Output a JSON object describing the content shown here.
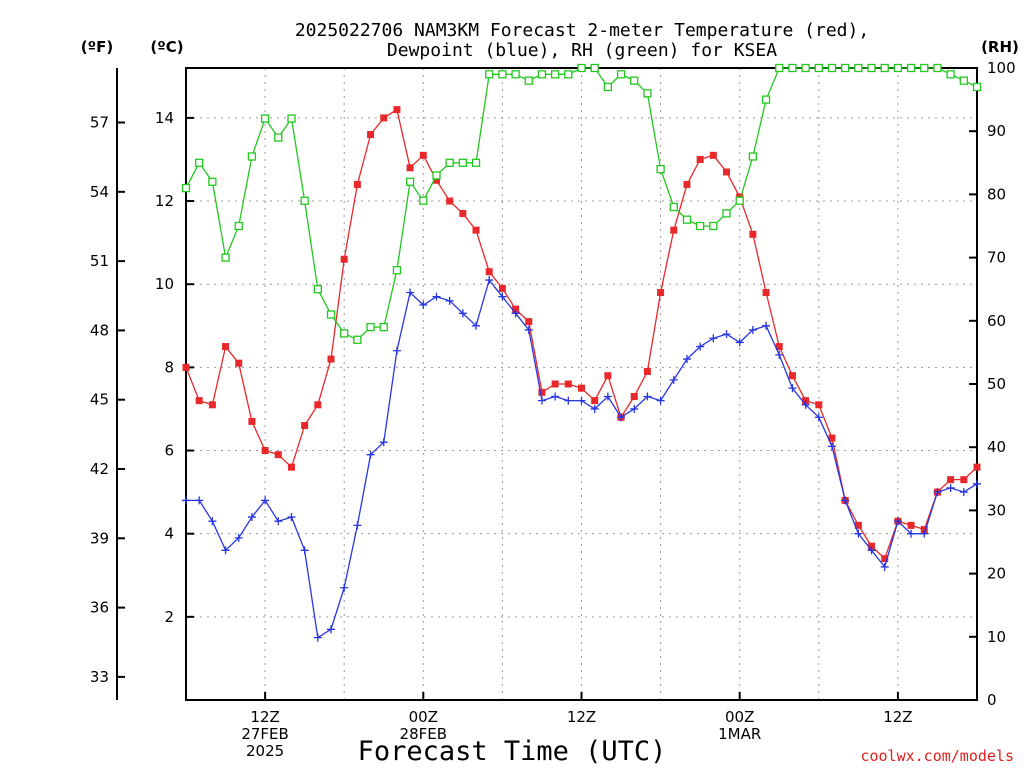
{
  "chart_data": {
    "type": "line",
    "title_line1": "2025022706 NAM3KM Forecast 2-meter Temperature (red),",
    "title_line2": "Dewpoint (blue), RH (green) for KSEA",
    "xlabel": "Forecast Time (UTC)",
    "watermark": "coolwx.com/models",
    "units": {
      "fahrenheit": "(ºF)",
      "celsius": "(ºC)",
      "rh": "(RH)"
    },
    "grid": true,
    "x_range_hours": [
      0,
      60
    ],
    "x_ticks": [
      {
        "hour": 6,
        "lines": [
          "12Z",
          "27FEB",
          "2025"
        ]
      },
      {
        "hour": 18,
        "lines": [
          "00Z",
          "28FEB"
        ]
      },
      {
        "hour": 30,
        "lines": [
          "12Z"
        ]
      },
      {
        "hour": 42,
        "lines": [
          "00Z",
          "1MAR"
        ]
      },
      {
        "hour": 54,
        "lines": [
          "12Z"
        ]
      }
    ],
    "axes": {
      "celsius": {
        "range": [
          0,
          15.2
        ],
        "ticks": [
          "2",
          "4",
          "6",
          "8",
          "10",
          "12",
          "14"
        ]
      },
      "fahrenheit": {
        "ticks": [
          "33",
          "36",
          "39",
          "42",
          "45",
          "48",
          "51",
          "54",
          "57"
        ]
      },
      "rh": {
        "range": [
          0,
          100
        ],
        "ticks": [
          "0",
          "10",
          "20",
          "30",
          "40",
          "50",
          "60",
          "70",
          "80",
          "90",
          "100"
        ]
      }
    },
    "series": [
      {
        "key": "temperature",
        "color": "#e8282a",
        "marker": "filled-square",
        "axis": "celsius",
        "values": [
          8.0,
          7.2,
          7.1,
          8.5,
          8.1,
          6.7,
          6.0,
          5.9,
          5.6,
          6.6,
          7.1,
          8.2,
          10.6,
          12.4,
          13.6,
          14.0,
          14.2,
          12.8,
          13.1,
          12.5,
          12.0,
          11.7,
          11.3,
          10.3,
          9.9,
          9.4,
          9.1,
          7.4,
          7.6,
          7.6,
          7.5,
          7.2,
          7.8,
          6.8,
          7.3,
          7.9,
          9.8,
          11.3,
          12.4,
          13.0,
          13.1,
          12.7,
          12.1,
          11.2,
          9.8,
          8.5,
          7.8,
          7.2,
          7.1,
          6.3,
          4.8,
          4.2,
          3.7,
          3.4,
          4.3,
          4.2,
          4.1,
          5.0,
          5.3,
          5.3,
          5.6
        ]
      },
      {
        "key": "dewpoint",
        "color": "#2836e0",
        "marker": "plus",
        "axis": "celsius",
        "values": [
          4.8,
          4.8,
          4.3,
          3.6,
          3.9,
          4.4,
          4.8,
          4.3,
          4.4,
          3.6,
          1.5,
          1.7,
          2.7,
          4.2,
          5.9,
          6.2,
          8.4,
          9.8,
          9.5,
          9.7,
          9.6,
          9.3,
          9.0,
          10.1,
          9.7,
          9.3,
          8.9,
          7.2,
          7.3,
          7.2,
          7.2,
          7.0,
          7.3,
          6.8,
          7.0,
          7.3,
          7.2,
          7.7,
          8.2,
          8.5,
          8.7,
          8.8,
          8.6,
          8.9,
          9.0,
          8.3,
          7.5,
          7.1,
          6.8,
          6.1,
          4.8,
          4.0,
          3.6,
          3.2,
          4.3,
          4.0,
          4.0,
          5.0,
          5.1,
          5.0,
          5.2
        ]
      },
      {
        "key": "rh",
        "color": "#22c81e",
        "marker": "open-square",
        "axis": "rh",
        "values": [
          81,
          85,
          82,
          70,
          75,
          86,
          92,
          89,
          92,
          79,
          65,
          61,
          58,
          57,
          59,
          59,
          68,
          82,
          79,
          83,
          85,
          85,
          85,
          99,
          99,
          99,
          98,
          99,
          99,
          99,
          100,
          100,
          97,
          99,
          98,
          96,
          84,
          78,
          76,
          75,
          75,
          77,
          79,
          86,
          95,
          100,
          100,
          100,
          100,
          100,
          100,
          100,
          100,
          100,
          100,
          100,
          100,
          100,
          99,
          98,
          97
        ]
      }
    ]
  }
}
